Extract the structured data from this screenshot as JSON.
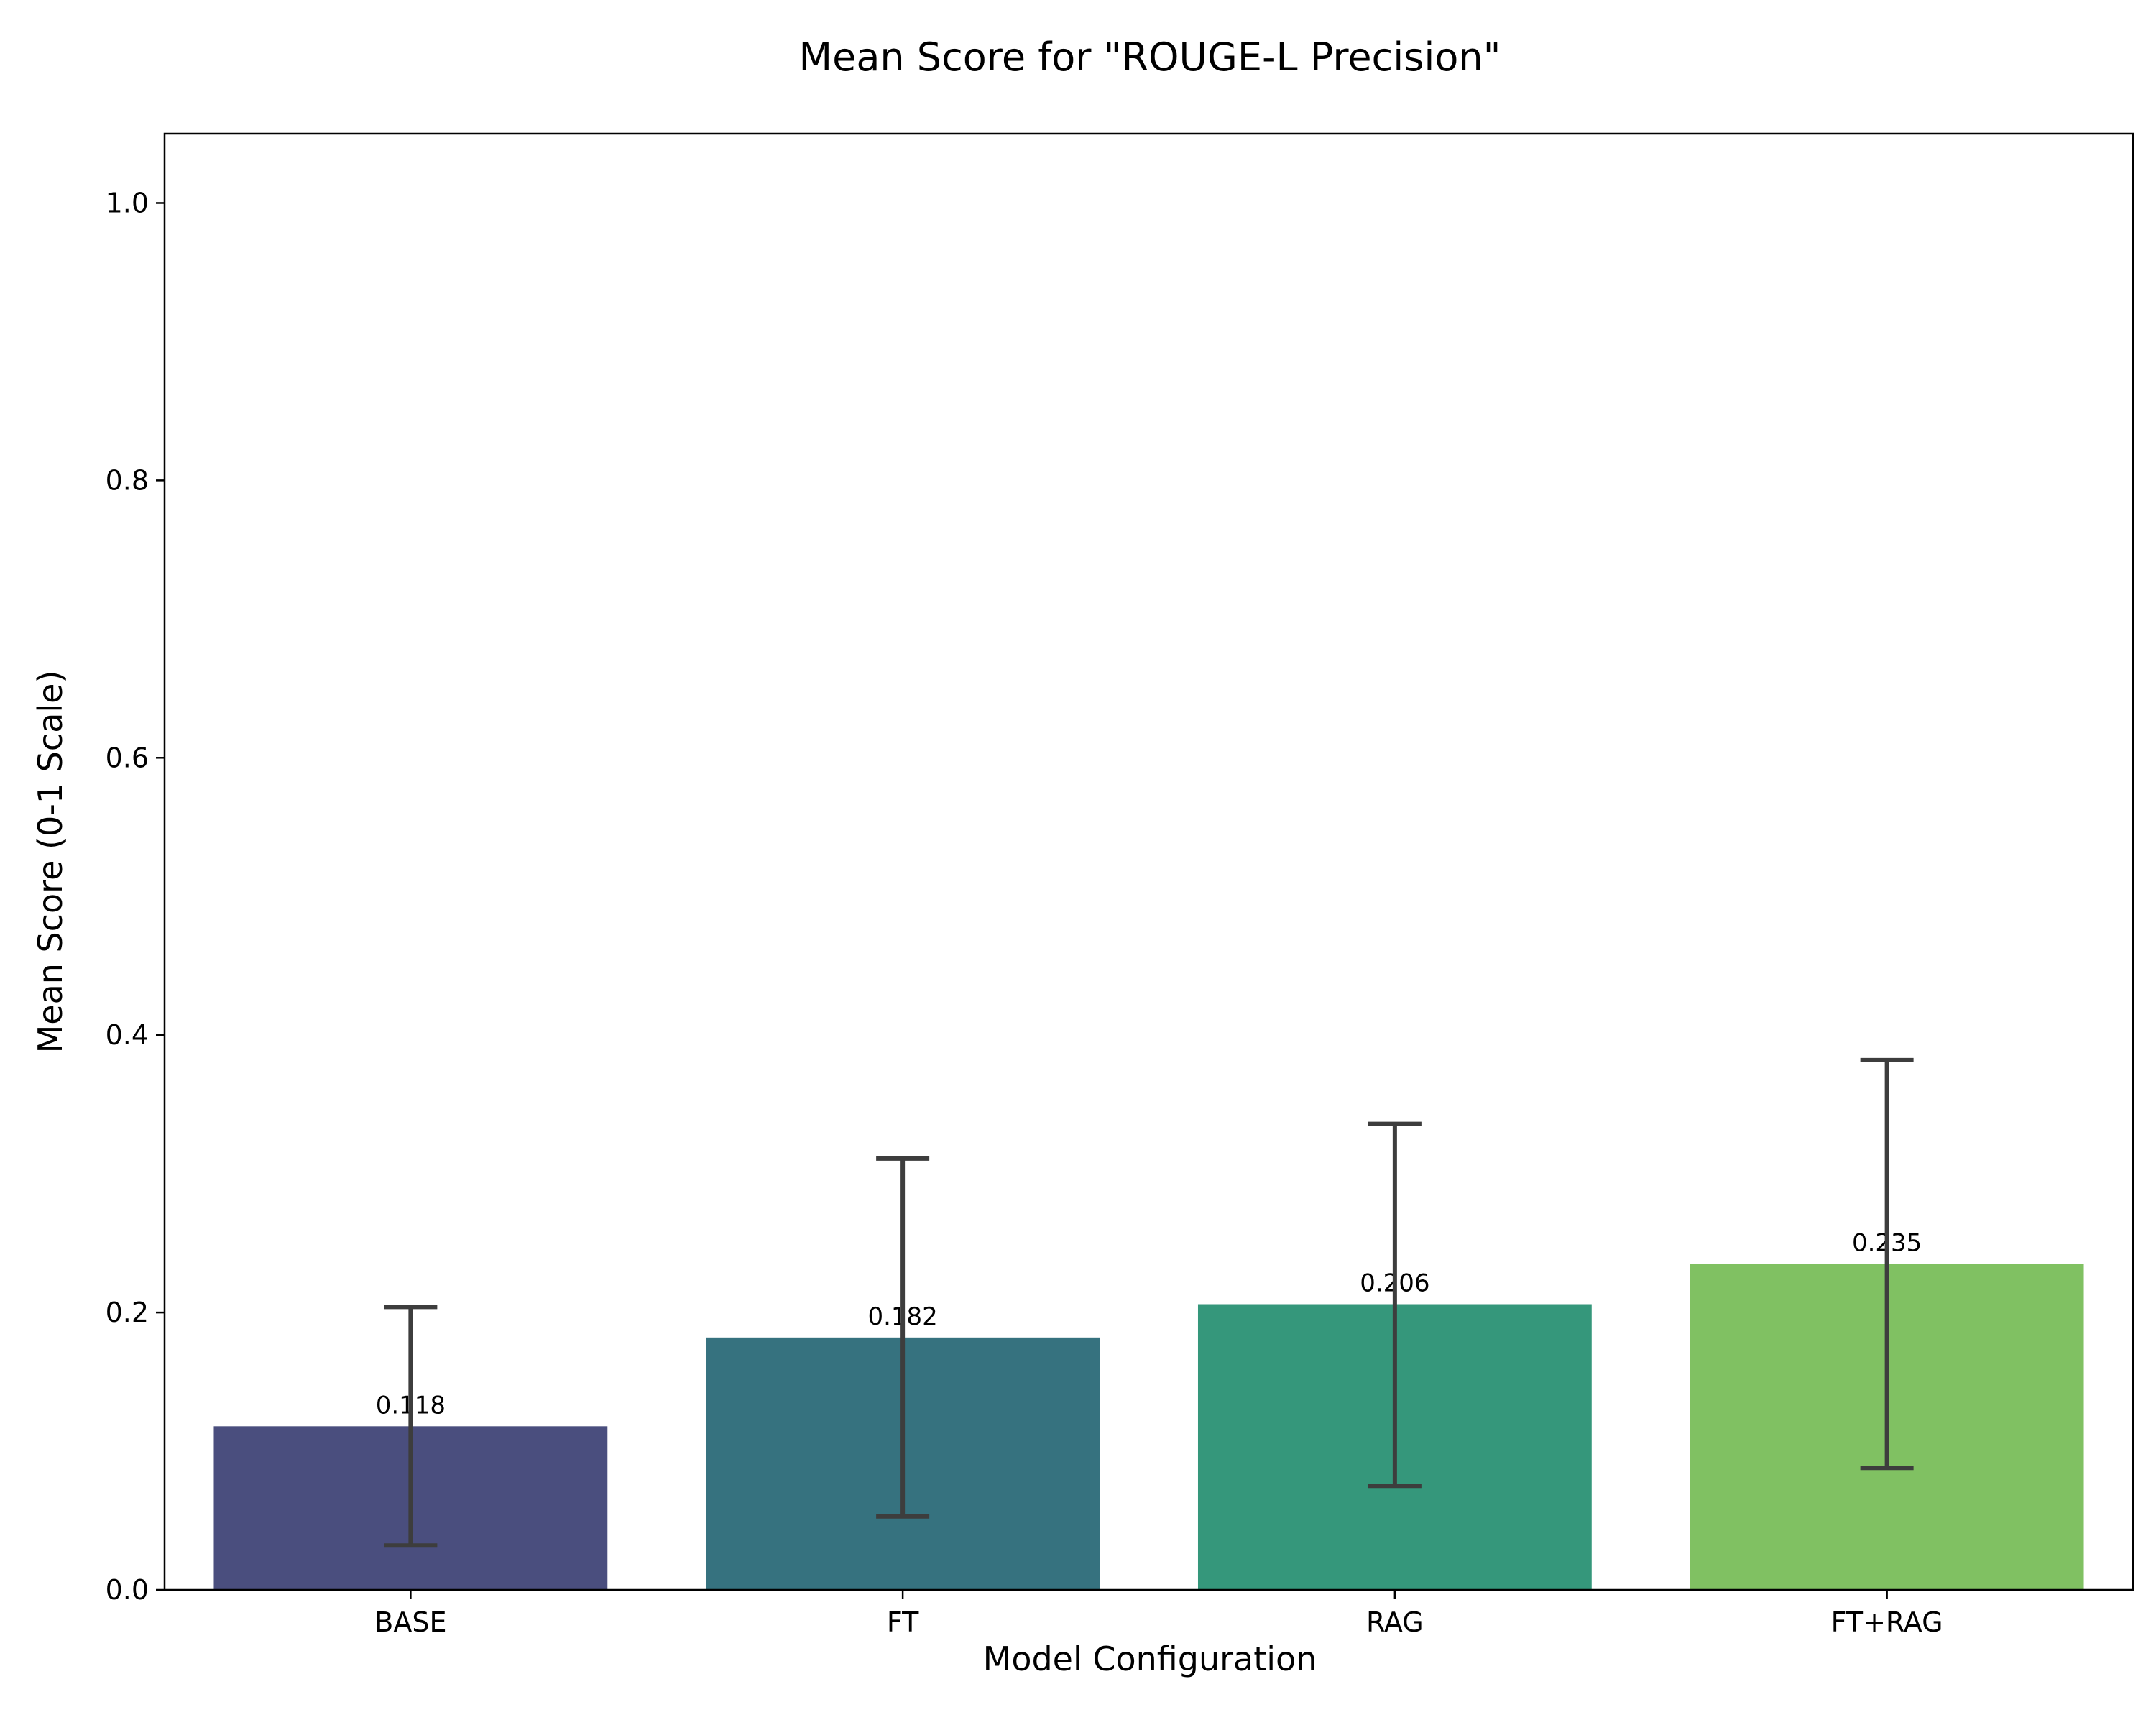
{
  "chart_data": {
    "type": "bar",
    "title": "Mean Score for \"ROUGE-L Precision\"",
    "xlabel": "Model Configuration",
    "ylabel": "Mean Score (0-1 Scale)",
    "ylim": [
      0,
      1.05
    ],
    "yticks": [
      "0.0",
      "0.2",
      "0.4",
      "0.6",
      "0.8",
      "1.0"
    ],
    "categories": [
      "BASE",
      "FT",
      "RAG",
      "FT+RAG"
    ],
    "values": [
      0.118,
      0.182,
      0.206,
      0.235
    ],
    "value_labels": [
      "0.118",
      "0.182",
      "0.206",
      "0.235"
    ],
    "error_bars": [
      {
        "low": 0.032,
        "high": 0.204
      },
      {
        "low": 0.053,
        "high": 0.311
      },
      {
        "low": 0.075,
        "high": 0.336
      },
      {
        "low": 0.088,
        "high": 0.382
      }
    ],
    "colors": [
      "#4a4e7e",
      "#36727f",
      "#35977b",
      "#80c162"
    ],
    "error_color": "#3d3d3d",
    "grid": false,
    "legend": "none"
  }
}
